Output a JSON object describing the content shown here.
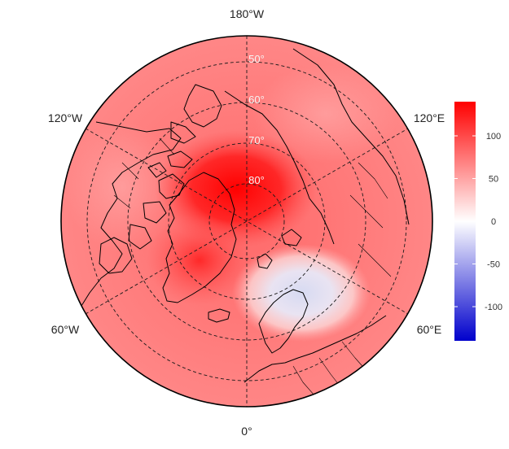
{
  "map": {
    "projection": "north-polar-stereographic",
    "longitude_labels": [
      "180°W",
      "120°W",
      "120°E",
      "60°W",
      "60°E",
      "0°"
    ],
    "latitude_labels": [
      "50°",
      "60°",
      "70°",
      "80°"
    ],
    "colorbar": {
      "min": -140,
      "max": 140,
      "ticks": [
        "100",
        "50",
        "0",
        "-50",
        "-100"
      ],
      "colors": {
        "high": "#ff0000",
        "mid": "#ffffff",
        "low": "#0000cc"
      }
    },
    "field_description_colors": {
      "background": "#ff7f7f",
      "max_region": "#ff1010",
      "min_region": "#dde0f4"
    }
  }
}
